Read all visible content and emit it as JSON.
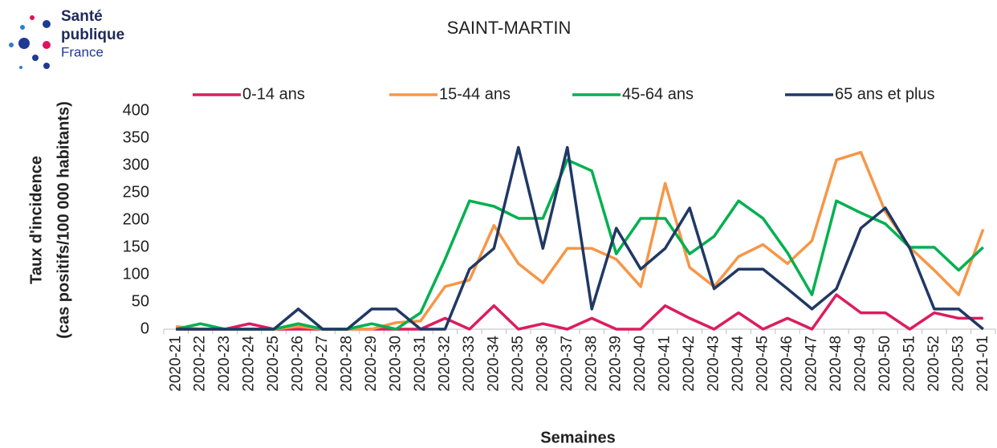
{
  "chart_data": {
    "type": "line",
    "logo": [
      "Santé",
      "publique",
      "France"
    ],
    "title": "SAINT-MARTIN",
    "xlabel": "Semaines",
    "ylabel": [
      "Taux d'incidence",
      "(cas positifs/100 000 habitants)"
    ],
    "categories": [
      "2020-21",
      "2020-22",
      "2020-23",
      "2020-24",
      "2020-25",
      "2020-26",
      "2020-27",
      "2020-28",
      "2020-29",
      "2020-30",
      "2020-31",
      "2020-32",
      "2020-33",
      "2020-34",
      "2020-35",
      "2020-36",
      "2020-37",
      "2020-38",
      "2020-39",
      "2020-40",
      "2020-41",
      "2020-42",
      "2020-43",
      "2020-44",
      "2020-45",
      "2020-46",
      "2020-47",
      "2020-48",
      "2020-49",
      "2020-50",
      "2020-51",
      "2020-52",
      "2020-53",
      "2021-01"
    ],
    "ylim": [
      0,
      400
    ],
    "yticks": [
      0,
      50,
      100,
      150,
      200,
      250,
      300,
      350,
      400
    ],
    "grid": false,
    "legend": "top",
    "series": [
      {
        "name": "0-14 ans",
        "color": "#dc1c5e",
        "values": [
          0,
          0,
          0,
          10,
          0,
          0,
          0,
          0,
          0,
          0,
          0,
          20,
          0,
          43,
          0,
          10,
          0,
          20,
          0,
          0,
          43,
          20,
          0,
          30,
          0,
          20,
          0,
          63,
          30,
          30,
          0,
          30,
          20,
          20
        ]
      },
      {
        "name": "15-44 ans",
        "color": "#f79646",
        "values": [
          5,
          0,
          0,
          0,
          0,
          5,
          0,
          0,
          0,
          12,
          15,
          78,
          90,
          190,
          120,
          85,
          148,
          148,
          128,
          78,
          267,
          113,
          78,
          133,
          155,
          120,
          162,
          310,
          324,
          215,
          150,
          108,
          63,
          183
        ]
      },
      {
        "name": "45-64 ans",
        "color": "#00b050",
        "values": [
          0,
          10,
          0,
          0,
          0,
          10,
          0,
          0,
          10,
          0,
          30,
          128,
          235,
          225,
          203,
          203,
          310,
          290,
          138,
          203,
          203,
          138,
          170,
          235,
          203,
          140,
          63,
          235,
          213,
          193,
          150,
          150,
          108,
          150
        ]
      },
      {
        "name": "65 ans et plus",
        "color": "#203864",
        "values": [
          0,
          0,
          0,
          0,
          0,
          37,
          0,
          0,
          37,
          37,
          0,
          0,
          110,
          148,
          333,
          148,
          333,
          37,
          185,
          110,
          148,
          222,
          74,
          110,
          110,
          74,
          37,
          74,
          185,
          222,
          148,
          37,
          37,
          0
        ]
      }
    ]
  }
}
